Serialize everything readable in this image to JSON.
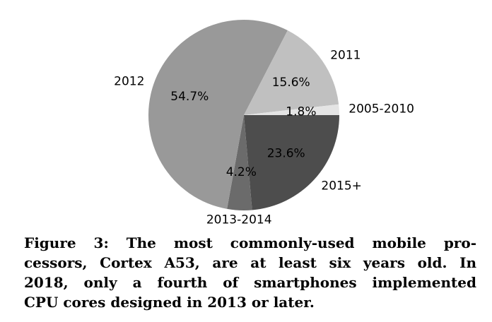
{
  "chart_data": {
    "type": "pie",
    "slices": [
      {
        "label": "2015+",
        "value": 23.6,
        "pct_label": "23.6%",
        "color": "#4d4d4d"
      },
      {
        "label": "2013-2014",
        "value": 4.2,
        "pct_label": "4.2%",
        "color": "#6b6b6b"
      },
      {
        "label": "2012",
        "value": 54.7,
        "pct_label": "54.7%",
        "color": "#999999"
      },
      {
        "label": "2011",
        "value": 15.6,
        "pct_label": "15.6%",
        "color": "#c0c0c0"
      },
      {
        "label": "2005-2010",
        "value": 1.8,
        "pct_label": "1.8%",
        "color": "#e4e4e4"
      }
    ],
    "start_angle_deg": 0,
    "direction": "clockwise"
  },
  "caption": {
    "line1": "Figure 3: The most commonly-used mobile pro-",
    "line2": "cessors, Cortex A53, are at least six years old. In",
    "line3": "2018, only a fourth of smartphones implemented",
    "line4": "CPU cores designed in 2013 or later."
  }
}
